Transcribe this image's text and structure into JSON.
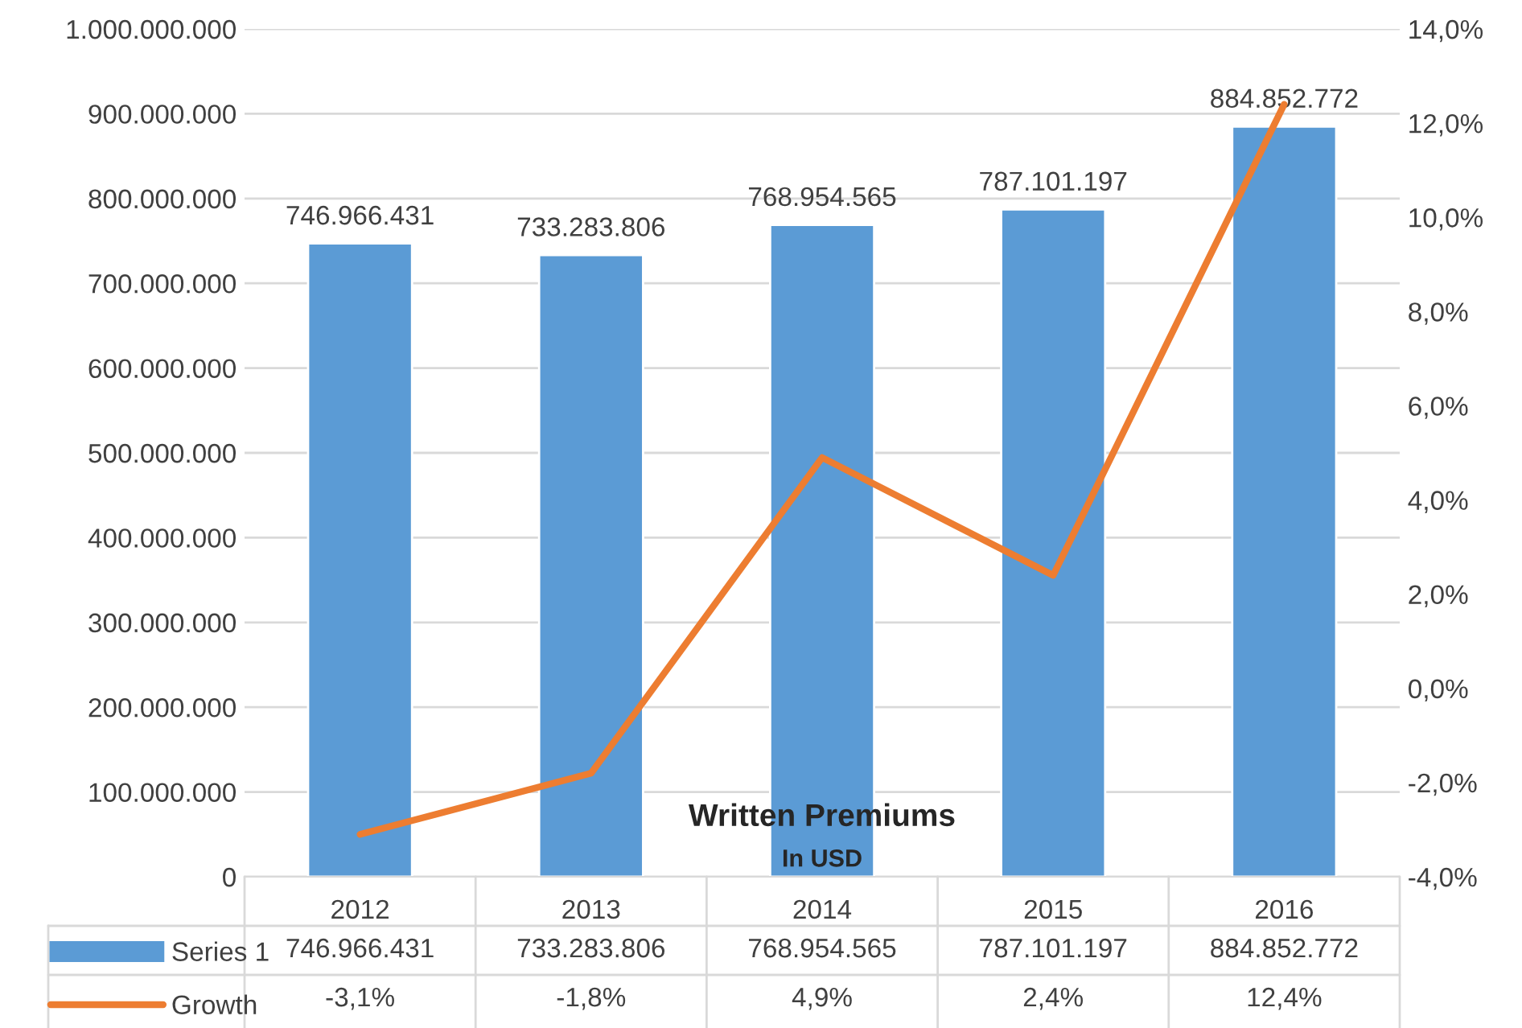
{
  "chart_data": {
    "type": "bar",
    "title": "Written Premiums",
    "subtitle": "In USD",
    "categories": [
      "2012",
      "2013",
      "2014",
      "2015",
      "2016"
    ],
    "series": [
      {
        "name": "Series 1",
        "color": "#5b9bd5",
        "values": [
          746966431,
          733283806,
          768954565,
          787101197,
          884852772
        ],
        "value_labels": [
          "746.966.431",
          "733.283.806",
          "768.954.565",
          "787.101.197",
          "884.852.772"
        ]
      },
      {
        "name": "Growth",
        "type": "line",
        "axis": "y2",
        "color": "#ed7d31",
        "values": [
          -3.1,
          -1.8,
          4.9,
          2.4,
          12.4
        ],
        "value_labels": [
          "-3,1%",
          "-1,8%",
          "4,9%",
          "2,4%",
          "12,4%"
        ]
      }
    ],
    "ylim": [
      0,
      1000000000
    ],
    "yticks": [
      0,
      {
        "value": 100000000,
        "label": "100.000.000"
      },
      {
        "value": 200000000,
        "label": "200.000.000"
      },
      {
        "value": 300000000,
        "label": "300.000.000"
      },
      {
        "value": 400000000,
        "label": "400.000.000"
      },
      {
        "value": 500000000,
        "label": "500.000.000"
      },
      {
        "value": 600000000,
        "label": "600.000.000"
      },
      {
        "value": 700000000,
        "label": "700.000.000"
      },
      {
        "value": 800000000,
        "label": "800.000.000"
      },
      {
        "value": 900000000,
        "label": "900.000.000"
      },
      {
        "value": 1000000000,
        "label": "1.000.000.000"
      }
    ],
    "y2lim": [
      -4,
      14
    ],
    "y2ticks": [
      {
        "value": -4,
        "label": "-4,0%"
      },
      {
        "value": -2,
        "label": "-2,0%"
      },
      {
        "value": 0,
        "label": "0,0%"
      },
      {
        "value": 2,
        "label": "2,0%"
      },
      {
        "value": 4,
        "label": "4,0%"
      },
      {
        "value": 6,
        "label": "6,0%"
      },
      {
        "value": 8,
        "label": "8,0%"
      },
      {
        "value": 10,
        "label": "10,0%"
      },
      {
        "value": 12,
        "label": "12,0%"
      },
      {
        "value": 14,
        "label": "14,0%"
      }
    ],
    "grid": "y",
    "legend": "bottom",
    "marker": "none",
    "line_style": "solid"
  }
}
